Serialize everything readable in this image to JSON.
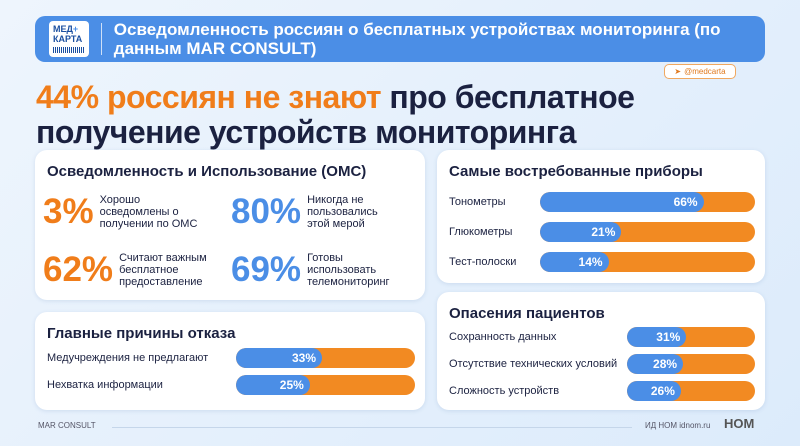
{
  "header": {
    "logo_line1": "МЕД",
    "logo_plus": "+",
    "logo_line2": "КАРТА",
    "title": "Осведомленность россиян о бесплатных устройствах мониторинга (по данным MAR CONSULT)"
  },
  "tag": "@medcarta",
  "headline": {
    "highlight": "44% россиян не знают",
    "rest": " про бесплатное получение устройств мониторинга"
  },
  "awareness": {
    "title": "Осведомленность и Использование (ОМС)",
    "stats": [
      {
        "value": "3%",
        "text": "Хорошо осведомлены о получении по ОМС",
        "color": "#f07d1a"
      },
      {
        "value": "80%",
        "text": "Никогда не пользовались этой мерой",
        "color": "#4b8ee6"
      },
      {
        "value": "62%",
        "text": "Считают важным бесплатное предоставление",
        "color": "#f07d1a"
      },
      {
        "value": "69%",
        "text": "Готовы использовать телемониторинг",
        "color": "#4b8ee6"
      }
    ]
  },
  "colors": {
    "blue": "#4b8ee6",
    "orange": "#f28a22"
  },
  "chart_data": [
    {
      "type": "bar",
      "title": "Главные причины отказа",
      "categories": [
        "Медучреждения не предлагают",
        "Нехватка информации"
      ],
      "values": [
        33,
        25
      ],
      "unit": "%"
    },
    {
      "type": "bar",
      "title": "Самые востребованные приборы",
      "categories": [
        "Тонометры",
        "Глюкометры",
        "Тест-полоски"
      ],
      "values": [
        66,
        21,
        14
      ],
      "unit": "%"
    },
    {
      "type": "bar",
      "title": "Опасения пациентов",
      "categories": [
        "Сохранность данных",
        "Отсутствие технических условий",
        "Сложность устройств"
      ],
      "values": [
        31,
        28,
        26
      ],
      "unit": "%"
    }
  ],
  "footer": {
    "source": "MAR CONSULT",
    "publisher": "ИД НОМ idnom.ru",
    "brand": "НОМ"
  }
}
